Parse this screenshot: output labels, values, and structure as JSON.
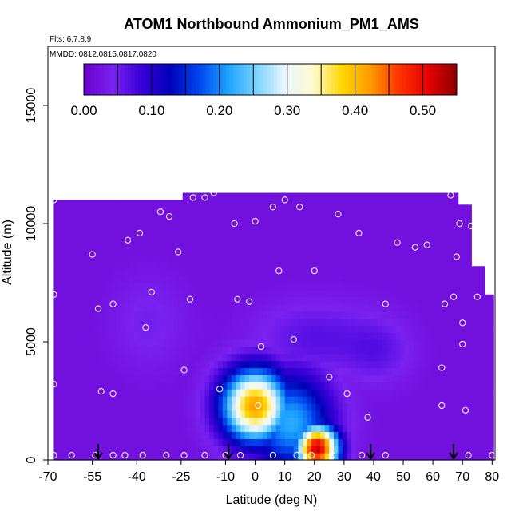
{
  "chart_data": {
    "type": "heatmap",
    "title": "ATOM1 Northbound Ammonium_PM1_AMS",
    "subtitle_flights": "Flts: 6,7,8,9",
    "subtitle_dates": "MMDD: 0812,0815,0817,0820",
    "xlabel": "Latitude (deg N)",
    "ylabel": "Altitude (m)",
    "xlim": [
      -70,
      81
    ],
    "ylim": [
      0,
      17500
    ],
    "x_ticks": [
      -70,
      -55,
      -40,
      -25,
      -10,
      0,
      10,
      20,
      30,
      40,
      50,
      60,
      70,
      80
    ],
    "y_ticks": [
      0,
      5000,
      10000,
      15000
    ],
    "colorbar": {
      "range": [
        0,
        0.55
      ],
      "tick_values": [
        0.0,
        0.1,
        0.2,
        0.3,
        0.4,
        0.5
      ],
      "tick_labels": [
        "0.00",
        "0.10",
        "0.20",
        "0.30",
        "0.40",
        "0.50"
      ],
      "colors": [
        "#6a00cc",
        "#7a22f0",
        "#3a00d8",
        "#0000b8",
        "#0044ee",
        "#1aa0ff",
        "#7ad4ff",
        "#e8f6ff",
        "#fffbd0",
        "#ffd700",
        "#ff9a00",
        "#ff3300",
        "#e60000",
        "#8b0000"
      ]
    },
    "background_value": 0.02,
    "features": [
      {
        "kind": "low_patch",
        "lat": -36,
        "alt": 5800,
        "sigma_lat": 9,
        "sigma_alt": 1400,
        "value": 0.05
      },
      {
        "kind": "low_patch",
        "lat": 20,
        "alt": 5200,
        "sigma_lat": 14,
        "sigma_alt": 1100,
        "value": 0.07
      },
      {
        "kind": "low_patch",
        "lat": 42,
        "alt": 4600,
        "sigma_lat": 8,
        "sigma_alt": 1000,
        "value": 0.06
      },
      {
        "kind": "high_patch",
        "lat": 0,
        "alt": 2300,
        "sigma_lat": 8,
        "sigma_alt": 1100,
        "value": 0.42
      },
      {
        "kind": "high_patch",
        "lat": 21,
        "alt": 500,
        "sigma_lat": 5,
        "sigma_alt": 700,
        "value": 0.52
      },
      {
        "kind": "high_patch",
        "lat": 12,
        "alt": 1600,
        "sigma_lat": 10,
        "sigma_alt": 1500,
        "value": 0.22
      }
    ],
    "sample_points": [
      [
        -68,
        11000
      ],
      [
        -68,
        7000
      ],
      [
        -68,
        3200
      ],
      [
        -68,
        200
      ],
      [
        -62,
        200
      ],
      [
        -55,
        8700
      ],
      [
        -53,
        6400
      ],
      [
        -48,
        6600
      ],
      [
        -43,
        9300
      ],
      [
        -39,
        9600
      ],
      [
        -37,
        5600
      ],
      [
        -35,
        7100
      ],
      [
        -32,
        10500
      ],
      [
        -29,
        10300
      ],
      [
        -26,
        8800
      ],
      [
        -24,
        3800
      ],
      [
        -22,
        6800
      ],
      [
        -21,
        11100
      ],
      [
        -17,
        11100
      ],
      [
        -14,
        11300
      ],
      [
        -12,
        3000
      ],
      [
        -7,
        10000
      ],
      [
        -6,
        6800
      ],
      [
        -2,
        6700
      ],
      [
        0,
        10100
      ],
      [
        2,
        4800
      ],
      [
        6,
        10700
      ],
      [
        8,
        8000
      ],
      [
        10,
        11000
      ],
      [
        13,
        5100
      ],
      [
        15,
        10700
      ],
      [
        20,
        8000
      ],
      [
        25,
        3500
      ],
      [
        28,
        10400
      ],
      [
        35,
        9600
      ],
      [
        38,
        1800
      ],
      [
        44,
        6600
      ],
      [
        48,
        9200
      ],
      [
        54,
        9000
      ],
      [
        58,
        9100
      ],
      [
        63,
        3900
      ],
      [
        63,
        2300
      ],
      [
        64,
        6600
      ],
      [
        66,
        11200
      ],
      [
        67,
        6900
      ],
      [
        68,
        8600
      ],
      [
        69,
        10000
      ],
      [
        70,
        5800
      ],
      [
        70,
        4900
      ],
      [
        71,
        2100
      ],
      [
        73,
        9900
      ],
      [
        75,
        6900
      ],
      [
        -54,
        200
      ],
      [
        -48,
        200
      ],
      [
        -44,
        200
      ],
      [
        -38,
        200
      ],
      [
        -30,
        200
      ],
      [
        -24,
        200
      ],
      [
        -17,
        200
      ],
      [
        -10,
        200
      ],
      [
        -5,
        200
      ],
      [
        1,
        2300
      ],
      [
        6,
        200
      ],
      [
        14,
        200
      ],
      [
        19,
        200
      ],
      [
        26,
        200
      ],
      [
        31,
        2800
      ],
      [
        36,
        200
      ],
      [
        44,
        200
      ],
      [
        72,
        200
      ],
      [
        80,
        200
      ],
      [
        -52,
        2900
      ],
      [
        -48,
        2800
      ]
    ],
    "arrow_latitudes": [
      -53,
      -9,
      39,
      67
    ]
  }
}
